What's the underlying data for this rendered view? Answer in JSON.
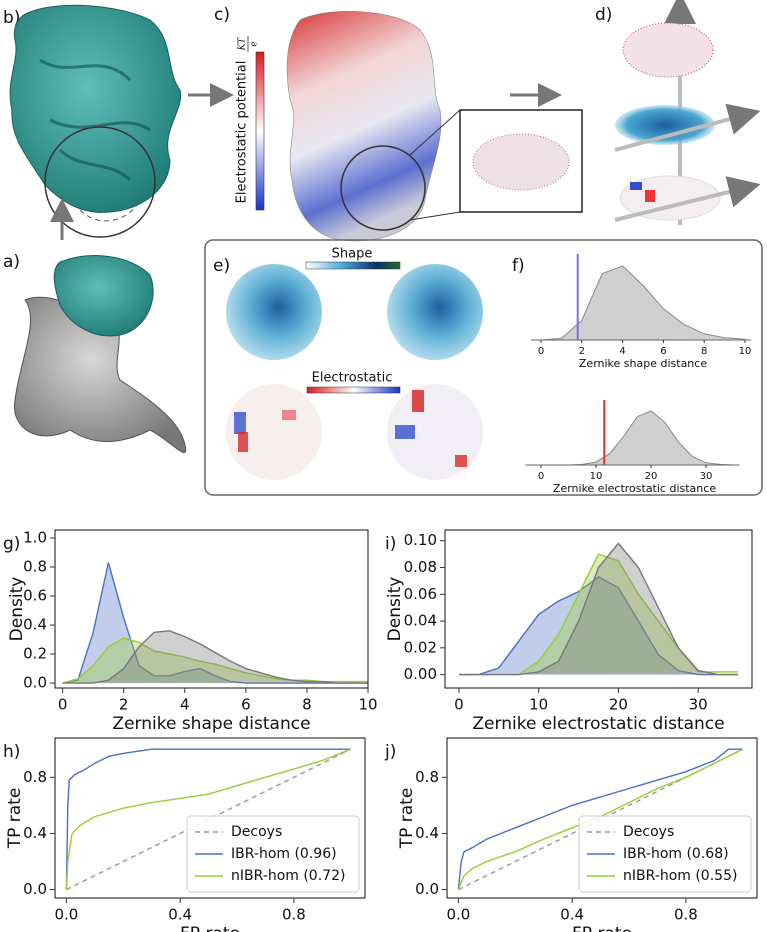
{
  "figure": {
    "panel_labels": [
      "a)",
      "b)",
      "c)",
      "d)",
      "e)",
      "f)"
    ],
    "shape_bar": "Shape",
    "electro_bar": "Electrostatic",
    "potential_label": "Electrostatic potential",
    "potential_unit": {
      "numerator": "KT",
      "denominator": "e"
    }
  },
  "chart_data": [
    {
      "type": "area",
      "xlim": [
        0,
        10
      ],
      "ylim": [
        0,
        1
      ],
      "xticks": [
        0,
        2,
        4,
        6,
        8,
        10
      ],
      "xlabel": "Zernike shape distance",
      "x": [
        0,
        1,
        2,
        3,
        4,
        5,
        6,
        7,
        8,
        9,
        10
      ],
      "series": [
        {
          "color": "#999999",
          "values": [
            0,
            0.02,
            0.25,
            0.85,
            0.95,
            0.7,
            0.4,
            0.2,
            0.08,
            0.03,
            0.01
          ]
        }
      ],
      "marker": {
        "value": 1.8,
        "color": "#7b6ee8"
      }
    },
    {
      "type": "area",
      "xlim": [
        -1,
        35
      ],
      "ylim": [
        0,
        1
      ],
      "xticks": [
        0,
        10,
        20,
        30
      ],
      "xlabel": "Zernike electrostatic distance",
      "x": [
        0,
        2.5,
        5,
        7.5,
        10,
        12.5,
        15,
        17.5,
        20,
        22.5,
        25,
        27.5,
        30,
        32.5,
        35
      ],
      "series": [
        {
          "color": "#999999",
          "values": [
            0,
            0,
            0,
            0.01,
            0.05,
            0.2,
            0.5,
            0.85,
            0.95,
            0.75,
            0.4,
            0.15,
            0.04,
            0.01,
            0
          ]
        }
      ],
      "marker": {
        "value": 11.5,
        "color": "#e8302a"
      }
    },
    {
      "type": "area",
      "label": "g)",
      "xlim": [
        -0.25,
        10
      ],
      "ylim": [
        -0.034,
        1.055
      ],
      "xticks": [
        0,
        2,
        4,
        6,
        8,
        10
      ],
      "yticks": [
        {
          "value": 0,
          "label": "0.0"
        },
        0.2,
        0.4,
        0.6,
        0.8,
        {
          "value": 1,
          "label": "1.0"
        }
      ],
      "xlabel": "Zernike shape distance",
      "ylabel": "Density",
      "x": [
        0,
        0.5,
        1,
        1.5,
        2,
        2.5,
        3,
        3.5,
        4,
        4.5,
        5,
        5.5,
        6,
        6.5,
        7,
        7.5,
        8,
        8.5,
        9,
        9.5,
        10
      ],
      "series": [
        {
          "color": "#4c6fc4",
          "values": [
            0,
            0.02,
            0.35,
            0.83,
            0.45,
            0.12,
            0.05,
            0.05,
            0.08,
            0.1,
            0.05,
            0.01,
            0,
            0,
            0,
            0,
            0,
            0,
            0,
            0,
            0
          ]
        },
        {
          "color": "#9acd32",
          "values": [
            0,
            0.03,
            0.12,
            0.25,
            0.31,
            0.28,
            0.22,
            0.2,
            0.18,
            0.15,
            0.13,
            0.1,
            0.07,
            0.05,
            0.03,
            0.02,
            0.02,
            0.01,
            0.01,
            0.01,
            0.01
          ]
        },
        {
          "color": "#777777",
          "values": [
            0,
            0,
            0,
            0.02,
            0.1,
            0.25,
            0.35,
            0.36,
            0.32,
            0.27,
            0.21,
            0.15,
            0.1,
            0.07,
            0.04,
            0.02,
            0.01,
            0.01,
            0,
            0,
            0
          ]
        }
      ]
    },
    {
      "type": "area",
      "label": "i)",
      "xlim": [
        -1.75,
        36.75
      ],
      "ylim": [
        -0.01,
        0.108
      ],
      "xticks": [
        0,
        10,
        20,
        30
      ],
      "yticks": [
        {
          "value": 0,
          "label": "0.00"
        },
        {
          "value": 0.02,
          "label": "0.02"
        },
        {
          "value": 0.04,
          "label": "0.04"
        },
        {
          "value": 0.06,
          "label": "0.06"
        },
        {
          "value": 0.08,
          "label": "0.08"
        },
        {
          "value": 0.1,
          "label": "0.10"
        }
      ],
      "xlabel": "Zernike electrostatic distance",
      "ylabel": "Density",
      "x": [
        0,
        2.5,
        5,
        7.5,
        10,
        12.5,
        15,
        17.5,
        20,
        22.5,
        25,
        27.5,
        30,
        32.5,
        35
      ],
      "series": [
        {
          "color": "#4c6fc4",
          "values": [
            0,
            0,
            0.005,
            0.025,
            0.045,
            0.055,
            0.062,
            0.073,
            0.065,
            0.04,
            0.015,
            0.003,
            0,
            0,
            0
          ]
        },
        {
          "color": "#9acd32",
          "values": [
            0,
            0,
            0,
            0,
            0.01,
            0.03,
            0.06,
            0.09,
            0.085,
            0.06,
            0.04,
            0.02,
            0.002,
            0.002,
            0.002
          ]
        },
        {
          "color": "#777777",
          "values": [
            0,
            0,
            0,
            0,
            0.002,
            0.01,
            0.04,
            0.08,
            0.098,
            0.08,
            0.05,
            0.02,
            0.003,
            0,
            0
          ]
        }
      ]
    },
    {
      "type": "line",
      "label": "h)",
      "xlim": [
        -0.04,
        1.05
      ],
      "ylim": [
        -0.06,
        1.08
      ],
      "xticks": [
        {
          "value": 0,
          "label": "0.0"
        },
        0.4,
        0.8
      ],
      "yticks": [
        {
          "value": 0,
          "label": "0.0"
        },
        0.4,
        0.8
      ],
      "xlabel": "FP rate",
      "ylabel": "TP rate",
      "legend": "lower right",
      "series": [
        {
          "name": "Decoys",
          "color": "#999999",
          "dash": true,
          "x": [
            0,
            1
          ],
          "values": [
            0,
            1
          ]
        },
        {
          "name": "IBR-hom (0.96)",
          "color": "#4c6fc4",
          "x": [
            0,
            0.005,
            0.01,
            0.03,
            0.06,
            0.1,
            0.15,
            0.2,
            0.3,
            0.4,
            0.6,
            0.8,
            0.9,
            1
          ],
          "values": [
            0,
            0.6,
            0.78,
            0.82,
            0.85,
            0.9,
            0.95,
            0.97,
            1,
            1,
            1,
            1,
            1,
            1
          ]
        },
        {
          "name": "nIBR-hom (0.72)",
          "color": "#9acd32",
          "x": [
            0,
            0.005,
            0.02,
            0.05,
            0.1,
            0.2,
            0.3,
            0.4,
            0.5,
            0.6,
            0.7,
            0.8,
            0.9,
            1
          ],
          "values": [
            0,
            0.2,
            0.4,
            0.46,
            0.52,
            0.58,
            0.62,
            0.65,
            0.68,
            0.74,
            0.8,
            0.86,
            0.92,
            1
          ]
        }
      ]
    },
    {
      "type": "line",
      "label": "j)",
      "xlim": [
        -0.04,
        1.05
      ],
      "ylim": [
        -0.06,
        1.08
      ],
      "xticks": [
        {
          "value": 0,
          "label": "0.0"
        },
        0.4,
        0.8
      ],
      "yticks": [
        {
          "value": 0,
          "label": "0.0"
        },
        0.4,
        0.8
      ],
      "xlabel": "FP rate",
      "ylabel": "TP rate",
      "legend": "lower right",
      "series": [
        {
          "name": "Decoys",
          "color": "#999999",
          "dash": true,
          "x": [
            0,
            1
          ],
          "values": [
            0,
            1
          ]
        },
        {
          "name": "IBR-hom (0.68)",
          "color": "#4c6fc4",
          "x": [
            0,
            0.01,
            0.02,
            0.05,
            0.1,
            0.2,
            0.3,
            0.4,
            0.5,
            0.6,
            0.7,
            0.8,
            0.9,
            0.95,
            1
          ],
          "values": [
            0,
            0.2,
            0.27,
            0.3,
            0.36,
            0.44,
            0.52,
            0.6,
            0.66,
            0.72,
            0.78,
            0.84,
            0.92,
            1,
            1
          ]
        },
        {
          "name": "nIBR-hom (0.55)",
          "color": "#9acd32",
          "x": [
            0,
            0.02,
            0.05,
            0.1,
            0.2,
            0.3,
            0.4,
            0.5,
            0.6,
            0.7,
            0.8,
            0.9,
            1
          ],
          "values": [
            0,
            0.1,
            0.15,
            0.2,
            0.27,
            0.36,
            0.44,
            0.52,
            0.62,
            0.72,
            0.8,
            0.9,
            1
          ]
        }
      ]
    }
  ]
}
